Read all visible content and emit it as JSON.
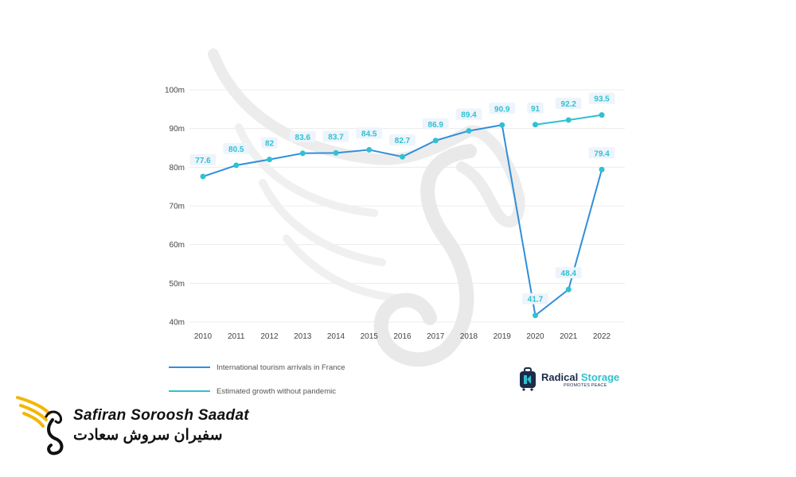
{
  "chart_data": {
    "type": "line",
    "x": [
      "2010",
      "2011",
      "2012",
      "2013",
      "2014",
      "2015",
      "2016",
      "2017",
      "2018",
      "2019",
      "2020",
      "2021",
      "2022"
    ],
    "yticks": [
      "40m",
      "50m",
      "60m",
      "70m",
      "80m",
      "90m",
      "100m"
    ],
    "ylim": [
      40,
      100
    ],
    "grid": true,
    "legend_placement": "bottom-left",
    "series": [
      {
        "name": "International tourism arrivals in France",
        "color": "#2f8fdc",
        "x": [
          "2010",
          "2011",
          "2012",
          "2013",
          "2014",
          "2015",
          "2016",
          "2017",
          "2018",
          "2019",
          "2020",
          "2021",
          "2022"
        ],
        "values": [
          77.6,
          80.5,
          82,
          83.6,
          83.7,
          84.5,
          82.7,
          86.9,
          89.4,
          90.9,
          41.7,
          48.4,
          79.4
        ]
      },
      {
        "name": "Estimated growth without pandemic",
        "color": "#2fc1d2",
        "x": [
          "2020",
          "2021",
          "2022"
        ],
        "values": [
          91,
          92.2,
          93.5
        ]
      }
    ],
    "data_labels": [
      {
        "x": "2010",
        "y": 77.6,
        "text": "77.6"
      },
      {
        "x": "2011",
        "y": 80.5,
        "text": "80.5"
      },
      {
        "x": "2012",
        "y": 82,
        "text": "82"
      },
      {
        "x": "2013",
        "y": 83.6,
        "text": "83.6"
      },
      {
        "x": "2014",
        "y": 83.7,
        "text": "83.7"
      },
      {
        "x": "2015",
        "y": 84.5,
        "text": "84.5"
      },
      {
        "x": "2016",
        "y": 82.7,
        "text": "82.7"
      },
      {
        "x": "2017",
        "y": 86.9,
        "text": "86.9"
      },
      {
        "x": "2018",
        "y": 89.4,
        "text": "89.4"
      },
      {
        "x": "2019",
        "y": 90.9,
        "text": "90.9"
      },
      {
        "x": "2020",
        "y": 91,
        "text": "91"
      },
      {
        "x": "2021",
        "y": 92.2,
        "text": "92.2"
      },
      {
        "x": "2022",
        "y": 93.5,
        "text": "93.5"
      },
      {
        "x": "2020",
        "y": 41.7,
        "text": "41.7"
      },
      {
        "x": "2021",
        "y": 48.4,
        "text": "48.4"
      },
      {
        "x": "2022",
        "y": 79.4,
        "text": "79.4"
      }
    ]
  },
  "legend": {
    "items": [
      {
        "label": "International tourism arrivals in France",
        "color": "#2f8fdc"
      },
      {
        "label": "Estimated growth without pandemic",
        "color": "#2fc1d2"
      }
    ]
  },
  "brand": {
    "name_part1": "Radical ",
    "name_part2": "Storage",
    "tagline": "PROMOTES PEACE",
    "icon": "luggage-icon"
  },
  "watermark": {
    "icon": "wing-swan-watermark-icon"
  },
  "logo": {
    "en": "Safiran Soroosh Saadat",
    "fa": "سفیران سروش سعادت",
    "icon": "golden-wing-swan-icon",
    "color": "#f2b705"
  }
}
